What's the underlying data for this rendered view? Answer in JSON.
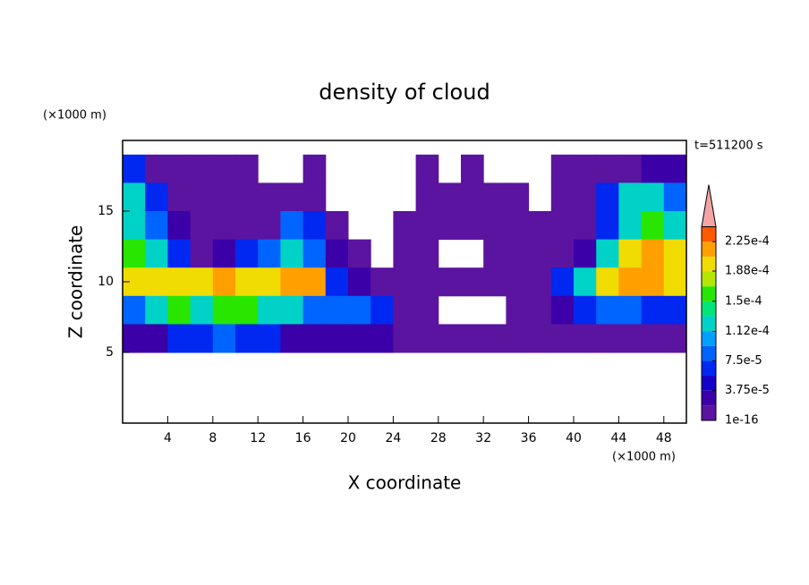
{
  "chart_data": {
    "type": "contour",
    "title": "density of cloud",
    "x_label": "X coordinate",
    "y_label": "Z coordinate",
    "x_unit": "(×1000 m)",
    "y_unit": "(×1000 m)",
    "annotation": "t=511200 s",
    "xlim": [
      0,
      50
    ],
    "ylim": [
      0,
      20
    ],
    "xticks": [
      4,
      8,
      12,
      16,
      20,
      24,
      28,
      32,
      36,
      40,
      44,
      48
    ],
    "yticks": [
      5,
      10,
      15
    ],
    "x": [
      1,
      3,
      5,
      7,
      9,
      11,
      13,
      15,
      17,
      19,
      21,
      23,
      25,
      27,
      29,
      31,
      33,
      35,
      37,
      39,
      41,
      43,
      45,
      47,
      49
    ],
    "z": [
      18,
      16,
      14,
      12,
      10,
      8,
      6
    ],
    "values": [
      [
        6e-05,
        1e-05,
        1e-05,
        1e-05,
        1e-05,
        1e-05,
        null,
        null,
        1e-05,
        null,
        null,
        null,
        null,
        1e-05,
        null,
        1e-05,
        null,
        null,
        null,
        1e-05,
        1e-05,
        1e-05,
        1e-05,
        3e-05,
        3e-05
      ],
      [
        0.00012,
        6e-05,
        1e-05,
        1e-05,
        1e-05,
        1e-05,
        1e-05,
        1e-05,
        1e-05,
        null,
        null,
        null,
        null,
        1e-05,
        1e-05,
        1e-05,
        1e-05,
        1e-05,
        null,
        1e-05,
        1e-05,
        6e-05,
        0.00012,
        0.00012,
        9e-05
      ],
      [
        0.00012,
        9e-05,
        3e-05,
        1e-05,
        1e-05,
        1e-05,
        1e-05,
        9e-05,
        6e-05,
        1e-05,
        null,
        null,
        1e-05,
        1e-05,
        1e-05,
        1e-05,
        1e-05,
        1e-05,
        1e-05,
        1e-05,
        1e-05,
        6e-05,
        0.00012,
        0.00015,
        0.00012
      ],
      [
        0.00015,
        0.00012,
        6e-05,
        1e-05,
        3e-05,
        6e-05,
        9e-05,
        0.00012,
        9e-05,
        3e-05,
        1e-05,
        null,
        1e-05,
        1e-05,
        null,
        null,
        1e-05,
        1e-05,
        1e-05,
        1e-05,
        3e-05,
        0.00012,
        0.00019,
        0.00022,
        0.00019
      ],
      [
        0.00019,
        0.00019,
        0.00019,
        0.00019,
        0.00022,
        0.00019,
        0.00019,
        0.00022,
        0.00022,
        6e-05,
        3e-05,
        1e-05,
        1e-05,
        1e-05,
        1e-05,
        1e-05,
        1e-05,
        1e-05,
        1e-05,
        6e-05,
        0.00012,
        0.00019,
        0.00022,
        0.00022,
        0.00019
      ],
      [
        9e-05,
        0.00012,
        0.00015,
        0.00012,
        0.00015,
        0.00015,
        0.00012,
        0.00012,
        9e-05,
        9e-05,
        9e-05,
        6e-05,
        1e-05,
        1e-05,
        null,
        null,
        null,
        1e-05,
        1e-05,
        3e-05,
        6e-05,
        9e-05,
        9e-05,
        6e-05,
        6e-05
      ],
      [
        3e-05,
        3e-05,
        6e-05,
        6e-05,
        9e-05,
        6e-05,
        6e-05,
        3e-05,
        3e-05,
        3e-05,
        3e-05,
        3e-05,
        1e-05,
        1e-05,
        1e-05,
        1e-05,
        1e-05,
        1e-05,
        1e-05,
        1e-05,
        1e-05,
        1e-05,
        1e-05,
        1e-05,
        1e-05
      ]
    ],
    "colorbar": {
      "levels": [
        1e-16,
        1.875e-05,
        3.75e-05,
        5.625e-05,
        7.5e-05,
        9.375e-05,
        0.0001125,
        0.00013125,
        0.00015,
        0.00016875,
        0.0001875,
        0.00020625,
        0.000225,
        0.00024375
      ],
      "colors": [
        "#5a14a0",
        "#3c00a8",
        "#1400c8",
        "#0028f0",
        "#0064ff",
        "#00a0ff",
        "#00d2c8",
        "#00e678",
        "#28e600",
        "#b4e600",
        "#f0dc00",
        "#ffa000",
        "#ff5a00"
      ],
      "over_color": "#f4a4a4",
      "ticks": [
        {
          "value": 1e-16,
          "label": "1e-16"
        },
        {
          "value": 3.75e-05,
          "label": "3.75e-5"
        },
        {
          "value": 7.5e-05,
          "label": "7.5e-5"
        },
        {
          "value": 0.000112,
          "label": "1.12e-4"
        },
        {
          "value": 0.00015,
          "label": "1.5e-4"
        },
        {
          "value": 0.000188,
          "label": "1.88e-4"
        },
        {
          "value": 0.000225,
          "label": "2.25e-4"
        }
      ]
    }
  }
}
